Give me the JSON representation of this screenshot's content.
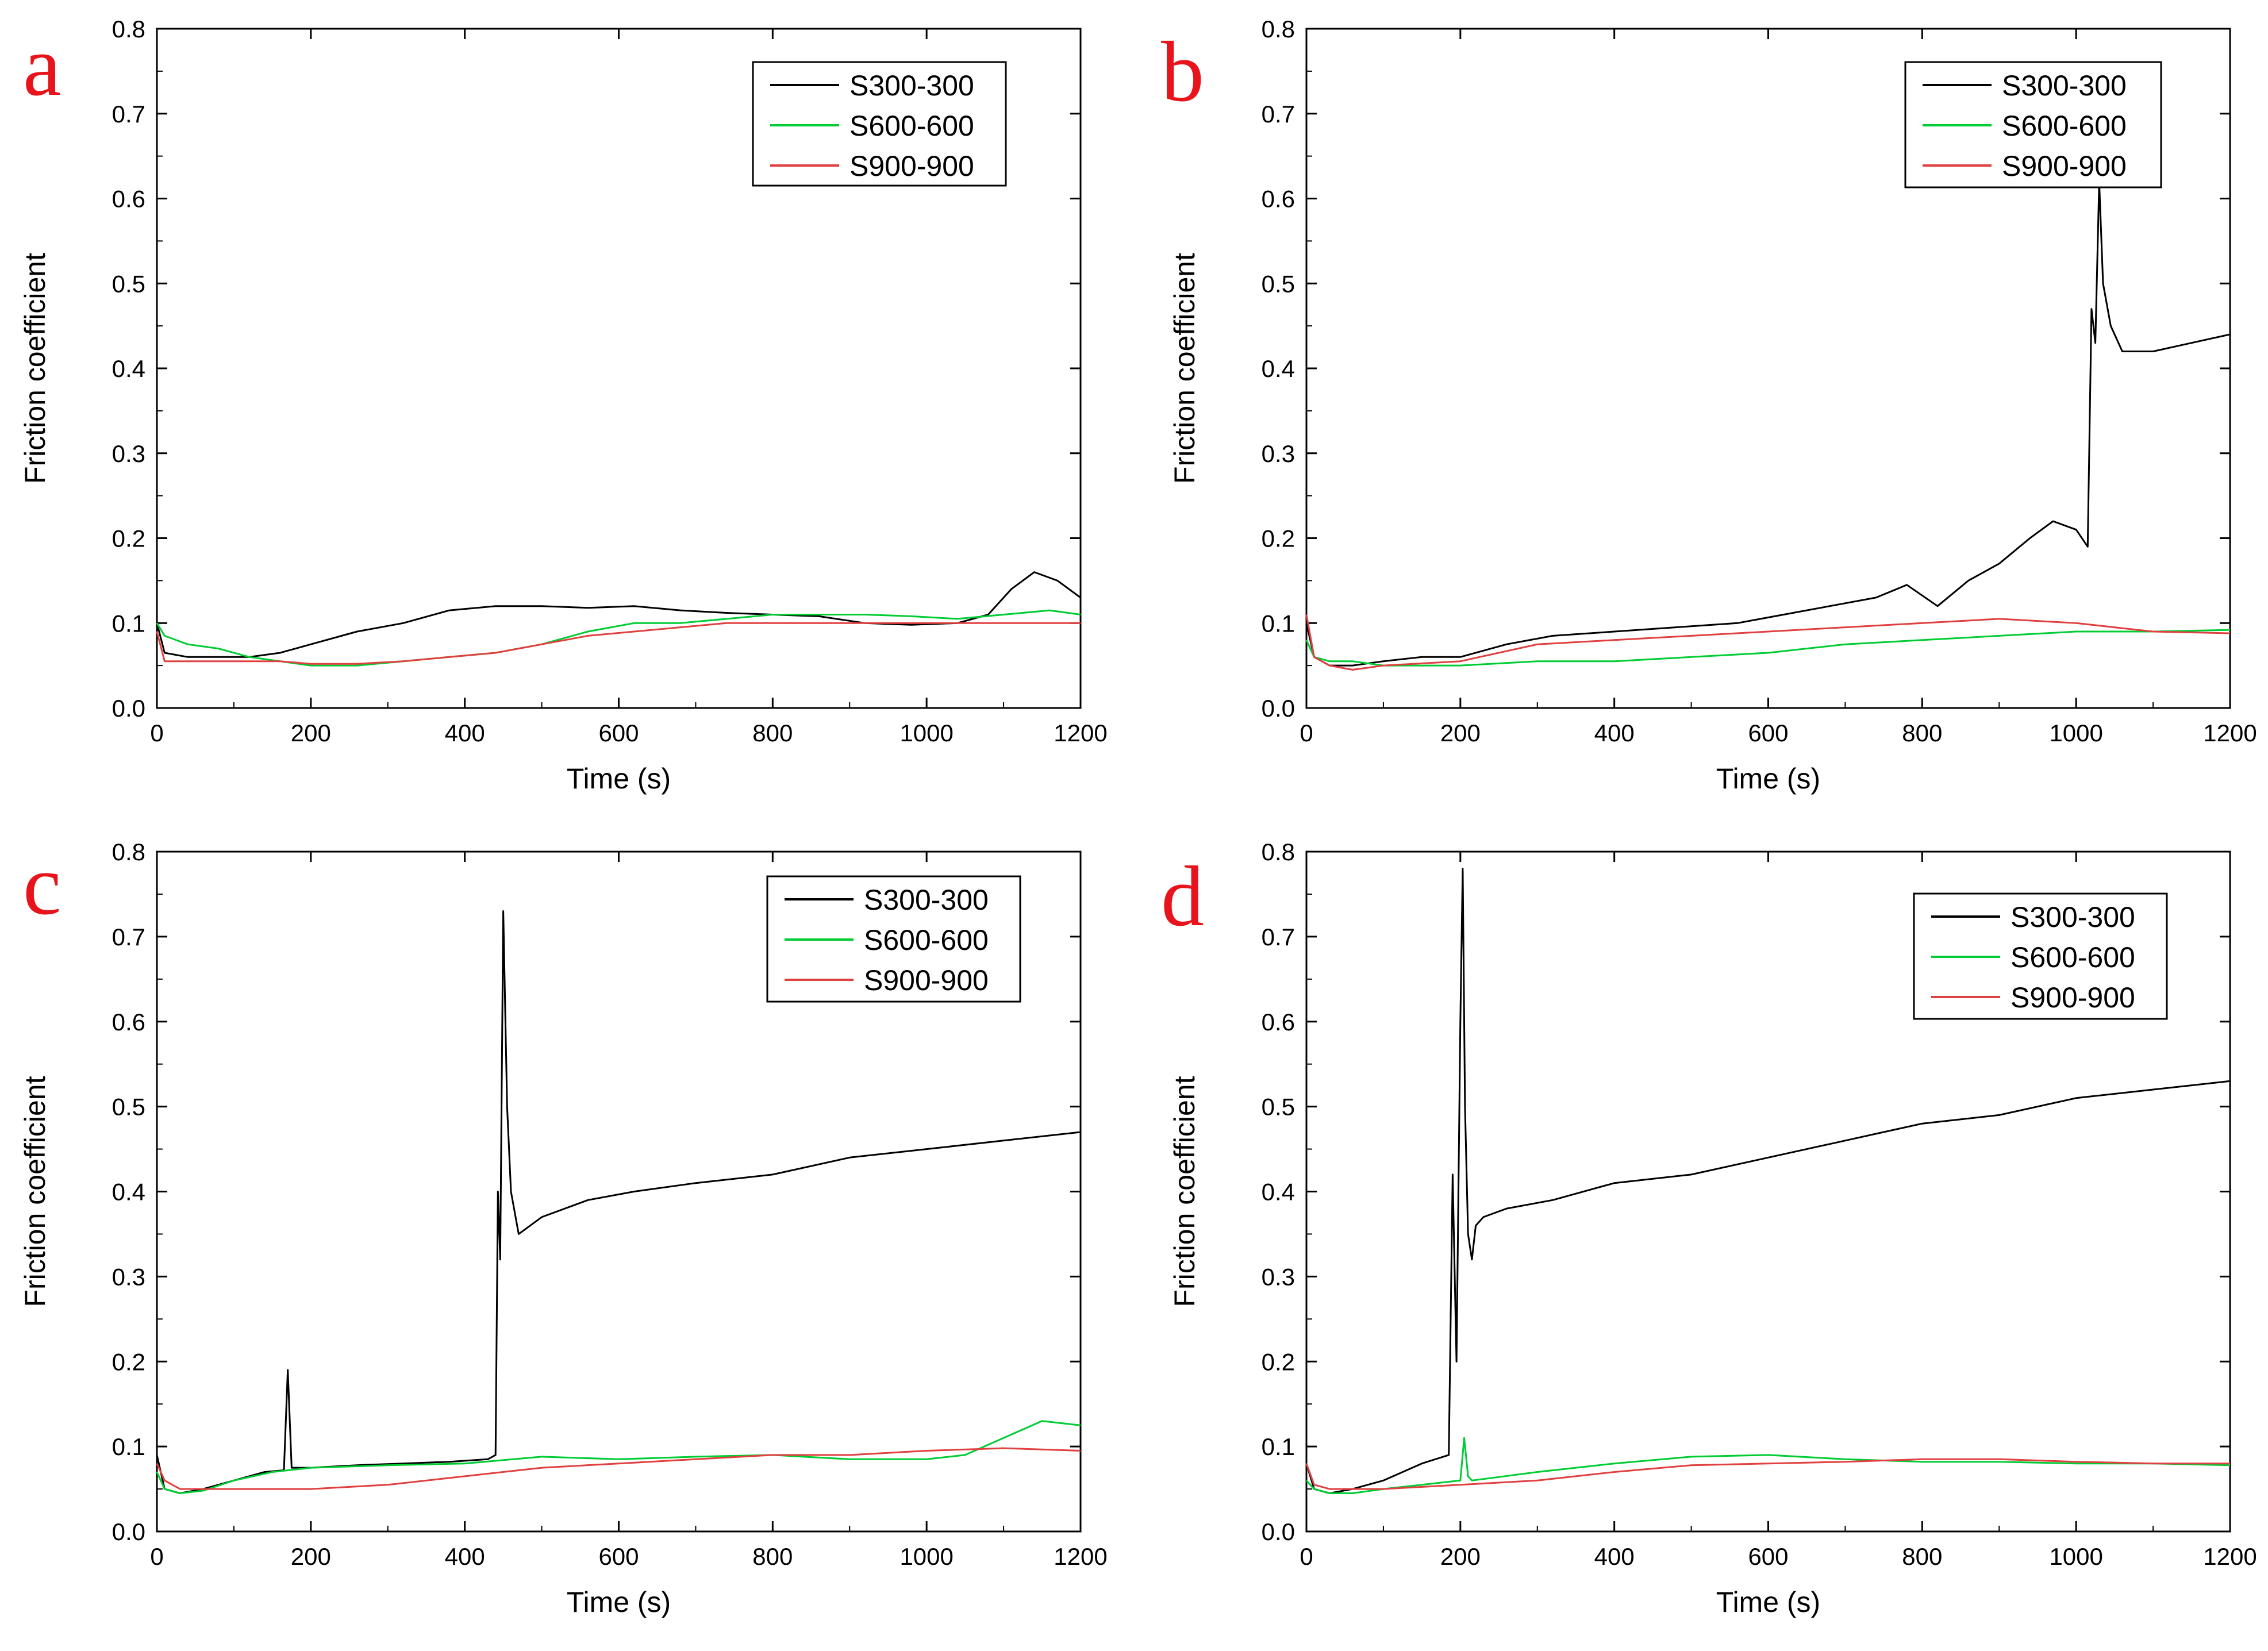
{
  "chart_data": [
    {
      "type": "line",
      "panel_label": "a",
      "xlabel": "Time (s)",
      "ylabel": "Friction coefficient",
      "xlim": [
        0,
        1200
      ],
      "ylim": [
        0,
        0.8
      ],
      "xticks": [
        "0",
        "200",
        "400",
        "600",
        "800",
        "1000",
        "1200"
      ],
      "yticks": [
        "0.0",
        "0.1",
        "0.2",
        "0.3",
        "0.4",
        "0.5",
        "0.6",
        "0.7",
        "0.8"
      ],
      "legend_position": "top-right",
      "series": [
        {
          "name": "S300-300",
          "color": "#000000",
          "x": [
            0,
            10,
            40,
            80,
            120,
            160,
            200,
            260,
            320,
            380,
            440,
            500,
            560,
            620,
            680,
            740,
            800,
            860,
            920,
            980,
            1040,
            1080,
            1110,
            1140,
            1170,
            1200
          ],
          "y": [
            0.1,
            0.065,
            0.06,
            0.06,
            0.06,
            0.065,
            0.075,
            0.09,
            0.1,
            0.115,
            0.12,
            0.12,
            0.118,
            0.12,
            0.115,
            0.112,
            0.11,
            0.108,
            0.1,
            0.098,
            0.1,
            0.11,
            0.14,
            0.16,
            0.15,
            0.13
          ]
        },
        {
          "name": "S600-600",
          "color": "#00cc33",
          "x": [
            0,
            10,
            40,
            80,
            120,
            160,
            200,
            260,
            320,
            380,
            440,
            500,
            560,
            620,
            680,
            740,
            800,
            860,
            920,
            980,
            1040,
            1100,
            1160,
            1200
          ],
          "y": [
            0.1,
            0.085,
            0.075,
            0.07,
            0.06,
            0.055,
            0.05,
            0.05,
            0.055,
            0.06,
            0.065,
            0.075,
            0.09,
            0.1,
            0.1,
            0.105,
            0.11,
            0.11,
            0.11,
            0.108,
            0.105,
            0.11,
            0.115,
            0.11
          ]
        },
        {
          "name": "S900-900",
          "color": "#e04040",
          "x": [
            0,
            10,
            40,
            80,
            120,
            160,
            200,
            260,
            320,
            380,
            440,
            500,
            560,
            620,
            680,
            740,
            800,
            860,
            920,
            980,
            1040,
            1100,
            1160,
            1200
          ],
          "y": [
            0.09,
            0.055,
            0.055,
            0.055,
            0.055,
            0.055,
            0.052,
            0.052,
            0.055,
            0.06,
            0.065,
            0.075,
            0.085,
            0.09,
            0.095,
            0.1,
            0.1,
            0.1,
            0.1,
            0.1,
            0.1,
            0.1,
            0.1,
            0.1
          ]
        }
      ]
    },
    {
      "type": "line",
      "panel_label": "b",
      "xlabel": "Time (s)",
      "ylabel": "Friction coefficient",
      "xlim": [
        0,
        1200
      ],
      "ylim": [
        0,
        0.8
      ],
      "xticks": [
        "0",
        "200",
        "400",
        "600",
        "800",
        "1000",
        "1200"
      ],
      "yticks": [
        "0.0",
        "0.1",
        "0.2",
        "0.3",
        "0.4",
        "0.5",
        "0.6",
        "0.7",
        "0.8"
      ],
      "legend_position": "top-right",
      "series": [
        {
          "name": "S300-300",
          "color": "#000000",
          "x": [
            0,
            10,
            30,
            60,
            100,
            150,
            200,
            260,
            320,
            400,
            480,
            560,
            620,
            680,
            740,
            780,
            820,
            860,
            900,
            940,
            970,
            1000,
            1015,
            1020,
            1025,
            1030,
            1035,
            1045,
            1060,
            1100,
            1150,
            1200
          ],
          "y": [
            0.1,
            0.06,
            0.05,
            0.05,
            0.055,
            0.06,
            0.06,
            0.075,
            0.085,
            0.09,
            0.095,
            0.1,
            0.11,
            0.12,
            0.13,
            0.145,
            0.12,
            0.15,
            0.17,
            0.2,
            0.22,
            0.21,
            0.19,
            0.47,
            0.43,
            0.62,
            0.5,
            0.45,
            0.42,
            0.42,
            0.43,
            0.44
          ]
        },
        {
          "name": "S600-600",
          "color": "#00cc33",
          "x": [
            0,
            10,
            30,
            60,
            100,
            200,
            300,
            400,
            500,
            600,
            700,
            800,
            900,
            1000,
            1100,
            1200
          ],
          "y": [
            0.08,
            0.06,
            0.055,
            0.055,
            0.05,
            0.05,
            0.055,
            0.055,
            0.06,
            0.065,
            0.075,
            0.08,
            0.085,
            0.09,
            0.09,
            0.092
          ]
        },
        {
          "name": "S900-900",
          "color": "#e04040",
          "x": [
            0,
            10,
            30,
            60,
            100,
            200,
            300,
            400,
            500,
            600,
            700,
            800,
            900,
            1000,
            1100,
            1200
          ],
          "y": [
            0.11,
            0.06,
            0.05,
            0.045,
            0.05,
            0.055,
            0.075,
            0.08,
            0.085,
            0.09,
            0.095,
            0.1,
            0.105,
            0.1,
            0.09,
            0.088
          ]
        }
      ]
    },
    {
      "type": "line",
      "panel_label": "c",
      "xlabel": "Time (s)",
      "ylabel": "Friction coefficient",
      "xlim": [
        0,
        1200
      ],
      "ylim": [
        0,
        0.8
      ],
      "xticks": [
        "0",
        "200",
        "400",
        "600",
        "800",
        "1000",
        "1200"
      ],
      "yticks": [
        "0.0",
        "0.1",
        "0.2",
        "0.3",
        "0.4",
        "0.5",
        "0.6",
        "0.7",
        "0.8"
      ],
      "legend_position": "top-right",
      "series": [
        {
          "name": "S300-300",
          "color": "#000000",
          "x": [
            0,
            10,
            30,
            60,
            100,
            140,
            165,
            170,
            175,
            200,
            260,
            320,
            380,
            430,
            440,
            443,
            446,
            450,
            455,
            460,
            470,
            500,
            560,
            620,
            700,
            800,
            900,
            1000,
            1100,
            1200
          ],
          "y": [
            0.09,
            0.05,
            0.045,
            0.05,
            0.06,
            0.07,
            0.072,
            0.19,
            0.075,
            0.075,
            0.078,
            0.08,
            0.082,
            0.085,
            0.09,
            0.4,
            0.32,
            0.73,
            0.5,
            0.4,
            0.35,
            0.37,
            0.39,
            0.4,
            0.41,
            0.42,
            0.44,
            0.45,
            0.46,
            0.47
          ]
        },
        {
          "name": "S600-600",
          "color": "#00cc33",
          "x": [
            0,
            10,
            30,
            60,
            100,
            150,
            200,
            300,
            400,
            500,
            600,
            700,
            800,
            900,
            1000,
            1050,
            1100,
            1150,
            1200
          ],
          "y": [
            0.07,
            0.05,
            0.045,
            0.048,
            0.06,
            0.07,
            0.075,
            0.078,
            0.08,
            0.088,
            0.085,
            0.088,
            0.09,
            0.085,
            0.085,
            0.09,
            0.11,
            0.13,
            0.125
          ]
        },
        {
          "name": "S900-900",
          "color": "#e04040",
          "x": [
            0,
            10,
            30,
            60,
            100,
            200,
            300,
            400,
            500,
            600,
            700,
            800,
            900,
            1000,
            1100,
            1200
          ],
          "y": [
            0.08,
            0.06,
            0.05,
            0.05,
            0.05,
            0.05,
            0.055,
            0.065,
            0.075,
            0.08,
            0.085,
            0.09,
            0.09,
            0.095,
            0.098,
            0.095
          ]
        }
      ]
    },
    {
      "type": "line",
      "panel_label": "d",
      "xlabel": "Time (s)",
      "ylabel": "Friction coefficient",
      "xlim": [
        0,
        1200
      ],
      "ylim": [
        0,
        0.8
      ],
      "xticks": [
        "0",
        "200",
        "400",
        "600",
        "800",
        "1000",
        "1200"
      ],
      "yticks": [
        "0.0",
        "0.1",
        "0.2",
        "0.3",
        "0.4",
        "0.5",
        "0.6",
        "0.7",
        "0.8"
      ],
      "legend_position": "top-right",
      "series": [
        {
          "name": "S300-300",
          "color": "#000000",
          "x": [
            0,
            10,
            30,
            60,
            100,
            150,
            185,
            190,
            195,
            200,
            203,
            206,
            210,
            215,
            220,
            230,
            260,
            320,
            400,
            500,
            600,
            700,
            800,
            900,
            1000,
            1100,
            1200
          ],
          "y": [
            0.08,
            0.05,
            0.045,
            0.05,
            0.06,
            0.08,
            0.09,
            0.42,
            0.2,
            0.6,
            0.78,
            0.5,
            0.35,
            0.32,
            0.36,
            0.37,
            0.38,
            0.39,
            0.41,
            0.42,
            0.44,
            0.46,
            0.48,
            0.49,
            0.51,
            0.52,
            0.53
          ]
        },
        {
          "name": "S600-600",
          "color": "#00cc33",
          "x": [
            0,
            10,
            30,
            60,
            100,
            150,
            200,
            205,
            210,
            215,
            300,
            400,
            500,
            600,
            700,
            800,
            900,
            1000,
            1100,
            1200
          ],
          "y": [
            0.06,
            0.05,
            0.045,
            0.045,
            0.05,
            0.055,
            0.06,
            0.11,
            0.065,
            0.06,
            0.07,
            0.08,
            0.088,
            0.09,
            0.085,
            0.082,
            0.082,
            0.08,
            0.08,
            0.078
          ]
        },
        {
          "name": "S900-900",
          "color": "#e04040",
          "x": [
            0,
            10,
            30,
            60,
            100,
            200,
            300,
            400,
            500,
            600,
            700,
            800,
            900,
            1000,
            1100,
            1200
          ],
          "y": [
            0.08,
            0.055,
            0.05,
            0.05,
            0.05,
            0.055,
            0.06,
            0.07,
            0.078,
            0.08,
            0.082,
            0.085,
            0.085,
            0.082,
            0.08,
            0.08
          ]
        }
      ]
    }
  ],
  "panel_letter_color": "#e8141c"
}
